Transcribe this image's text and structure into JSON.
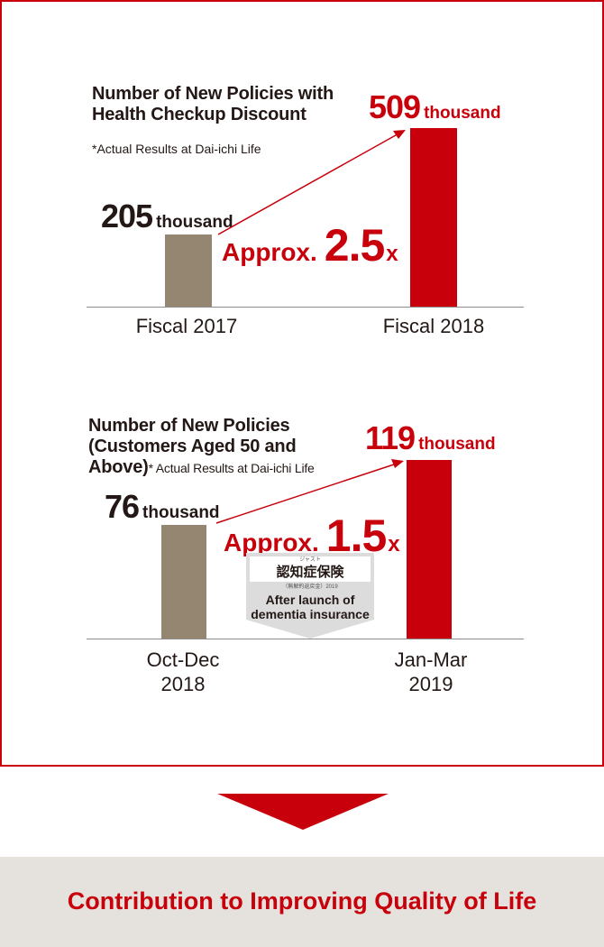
{
  "colors": {
    "accent_red": "#c8000b",
    "bar_gray": "#948670",
    "footer_bg": "#e5e1dd",
    "text": "#231815"
  },
  "chart_data": [
    {
      "type": "bar",
      "title": "Number of New Policies with Health Checkup Discount",
      "note": "*Actual Results at Dai-ichi Life",
      "categories": [
        "Fiscal 2017",
        "Fiscal 2018"
      ],
      "values": [
        205,
        509
      ],
      "value_labels": [
        {
          "num": "205",
          "unit": "thousand"
        },
        {
          "num": "509",
          "unit": "thousand"
        }
      ],
      "unit": "thousand",
      "ratio": {
        "word": "Approx.",
        "mult": "2.5",
        "x": "x"
      },
      "bar_colors": [
        "#948670",
        "#c8000b"
      ],
      "ylim": [
        0,
        509
      ]
    },
    {
      "type": "bar",
      "title_lines": [
        "Number of New Policies",
        "(Customers Aged 50 and",
        "Above)"
      ],
      "note": "* Actual Results at Dai-ichi Life",
      "categories": [
        [
          "Oct-Dec",
          "2018"
        ],
        [
          "Jan-Mar",
          "2019"
        ]
      ],
      "values": [
        76,
        119
      ],
      "value_labels": [
        {
          "num": "76",
          "unit": "thousand"
        },
        {
          "num": "119",
          "unit": "thousand"
        }
      ],
      "unit": "thousand",
      "ratio": {
        "word": "Approx.",
        "mult": "1.5",
        "x": "x"
      },
      "bar_colors": [
        "#948670",
        "#c8000b"
      ],
      "ylim": [
        0,
        119
      ],
      "annotation": {
        "logo_small": "ジャスト",
        "logo": "認知症保険",
        "logo_sub": "（無解約返戻金）2019",
        "lines": [
          "After launch of",
          "dementia insurance"
        ]
      }
    }
  ],
  "footer": {
    "text": "Contribution to Improving Quality of Life"
  }
}
